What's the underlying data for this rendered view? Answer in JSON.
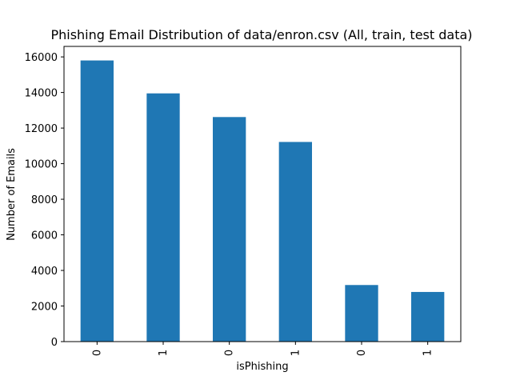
{
  "chart_data": {
    "type": "bar",
    "title": "Phishing Email Distribution of data/enron.csv (All, train, test data)",
    "xlabel": "isPhishing",
    "ylabel": "Number of Emails",
    "categories": [
      "0",
      "1",
      "0",
      "1",
      "0",
      "1"
    ],
    "values": [
      15800,
      13950,
      12620,
      11220,
      3180,
      2790
    ],
    "ylim": [
      0,
      16590
    ],
    "yticks": [
      0,
      2000,
      4000,
      6000,
      8000,
      10000,
      12000,
      14000,
      16000
    ],
    "grid": false,
    "legend": "none",
    "colors": {
      "bar": "#1f77b4",
      "axis": "#000000",
      "background": "#ffffff"
    }
  }
}
